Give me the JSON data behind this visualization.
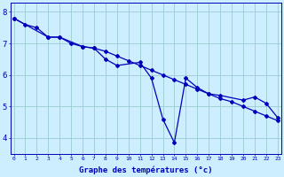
{
  "xlabel": "Graphe des températures (°c)",
  "background_color": "#cceeff",
  "line_color": "#0000bb",
  "grid_color": "#99cccc",
  "hours": [
    0,
    1,
    2,
    3,
    4,
    5,
    6,
    7,
    8,
    9,
    10,
    11,
    12,
    13,
    14,
    15,
    16,
    17,
    18,
    19,
    20,
    21,
    22,
    23
  ],
  "line1": [
    7.8,
    7.6,
    7.5,
    7.2,
    7.2,
    7.0,
    6.9,
    6.85,
    6.75,
    6.6,
    6.45,
    6.3,
    6.15,
    6.0,
    5.85,
    5.7,
    5.55,
    5.4,
    5.25,
    5.15,
    5.0,
    4.85,
    4.7,
    4.55
  ],
  "line2_x": [
    0,
    3,
    4,
    6,
    7,
    8,
    9,
    11,
    12,
    13,
    14,
    15,
    16,
    17,
    18,
    20,
    21,
    22,
    23
  ],
  "line2_y": [
    7.8,
    7.2,
    7.2,
    6.9,
    6.85,
    6.5,
    6.3,
    6.4,
    5.9,
    4.6,
    3.85,
    5.9,
    5.6,
    5.4,
    5.35,
    5.2,
    5.3,
    5.1,
    4.65
  ],
  "ylim": [
    3.5,
    8.3
  ],
  "yticks": [
    4,
    5,
    6,
    7,
    8
  ],
  "xlim": [
    -0.3,
    23.3
  ]
}
